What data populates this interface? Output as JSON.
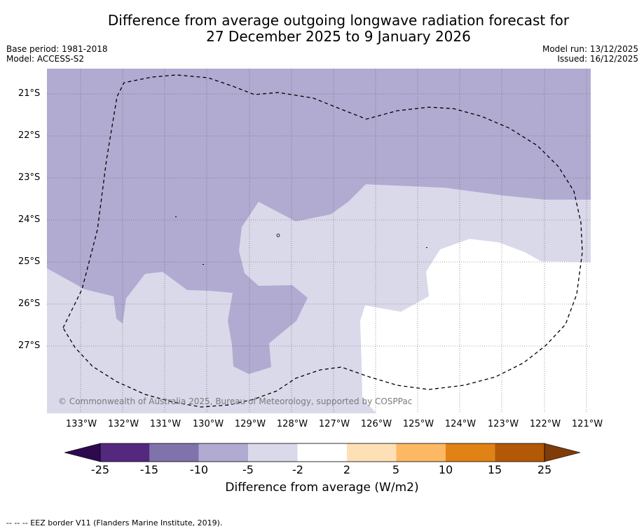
{
  "header": {
    "title_line1": "Difference from average outgoing longwave radiation forecast for",
    "title_line2": "27 December 2025 to 9 January 2026",
    "base_period": "Base period: 1981-2018",
    "model": "Model: ACCESS-S2",
    "model_run": "Model run: 13/12/2025",
    "issued": "Issued: 16/12/2025"
  },
  "map": {
    "latitudes": [
      "21°S",
      "22°S",
      "23°S",
      "24°S",
      "25°S",
      "26°S",
      "27°S"
    ],
    "longitudes": [
      "133°W",
      "132°W",
      "131°W",
      "130°W",
      "129°W",
      "128°W",
      "127°W",
      "126°W",
      "125°W",
      "124°W",
      "123°W",
      "122°W",
      "121°W"
    ],
    "copyright": "© Commonwealth of Australia 2025, Bureau of Meteorology, supported by COSPPac",
    "colors": {
      "range_-10_-5": "#b1abd2",
      "range_-5_-2": "#d9d9ea",
      "range_-2_2": "#ffffff"
    }
  },
  "colorbar": {
    "labels": [
      "-25",
      "-15",
      "-10",
      "-5",
      "-2",
      "2",
      "5",
      "10",
      "15",
      "25"
    ],
    "colors": [
      "#2d0a4d",
      "#55287f",
      "#8073ac",
      "#b1abd2",
      "#d9d9ea",
      "#ffffff",
      "#fee0b6",
      "#fdb863",
      "#e08214",
      "#b35806",
      "#7f3b08"
    ],
    "title": "Difference from average (W/m2)"
  },
  "footnote": "--  --  -- EEZ border V11 (Flanders Marine Institute, 2019)."
}
